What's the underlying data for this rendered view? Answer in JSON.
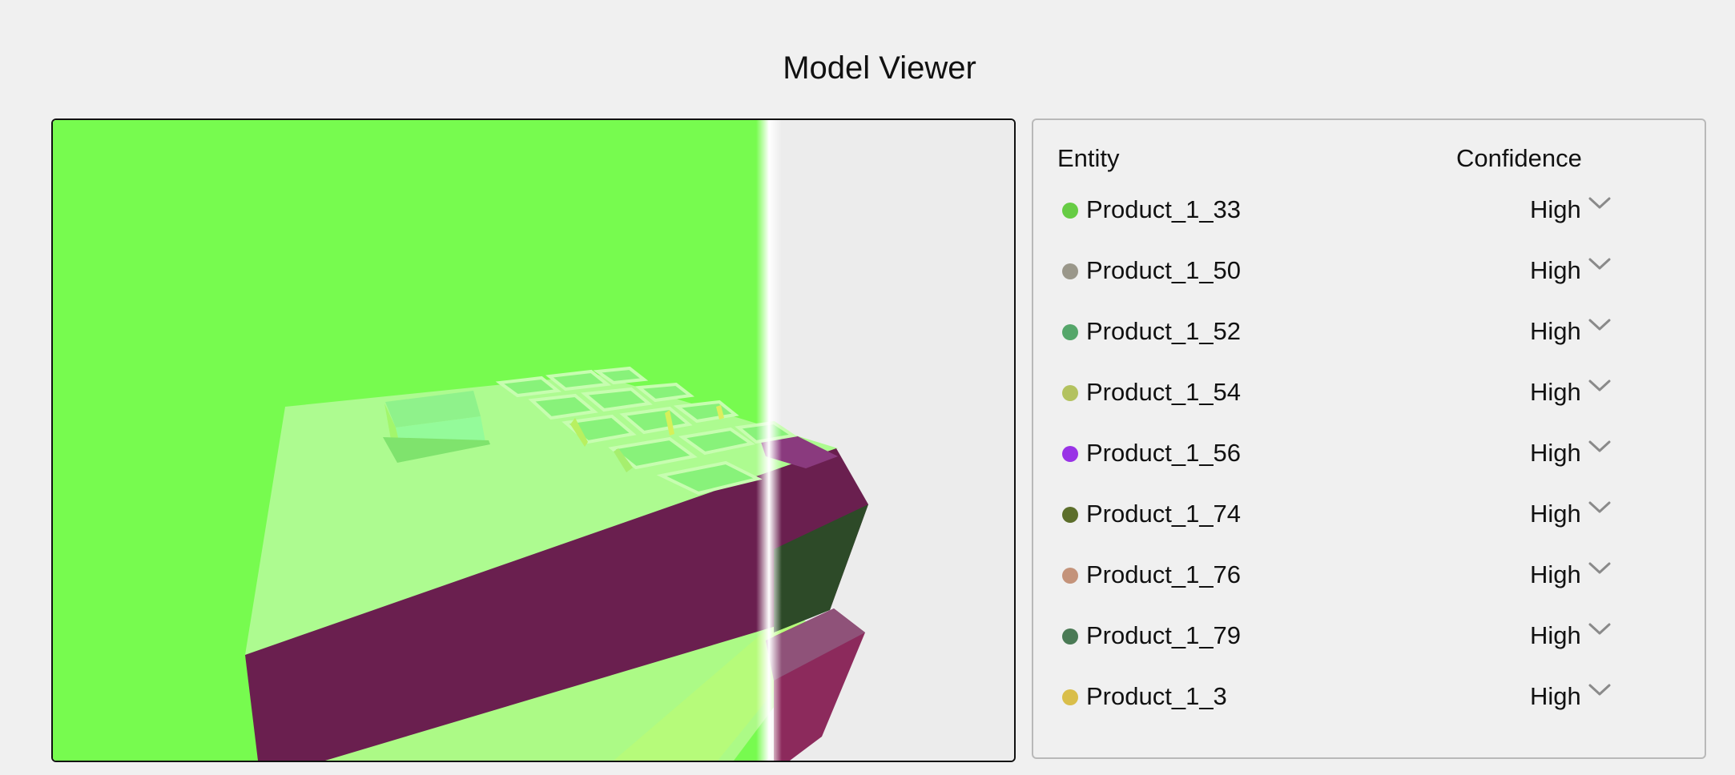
{
  "page": {
    "title": "Model Viewer"
  },
  "table": {
    "headers": {
      "entity": "Entity",
      "confidence": "Confidence"
    },
    "rows": [
      {
        "name": "Product_1_33",
        "color": "#66cc44",
        "confidence": "High"
      },
      {
        "name": "Product_1_50",
        "color": "#9a978a",
        "confidence": "High"
      },
      {
        "name": "Product_1_52",
        "color": "#55a66a",
        "confidence": "High"
      },
      {
        "name": "Product_1_54",
        "color": "#b3c25f",
        "confidence": "High"
      },
      {
        "name": "Product_1_56",
        "color": "#9933e6",
        "confidence": "High"
      },
      {
        "name": "Product_1_74",
        "color": "#5c6e2b",
        "confidence": "High"
      },
      {
        "name": "Product_1_76",
        "color": "#c4937a",
        "confidence": "High"
      },
      {
        "name": "Product_1_79",
        "color": "#4a7a55",
        "confidence": "High"
      },
      {
        "name": "Product_1_3",
        "color": "#d9be4a",
        "confidence": "High"
      }
    ]
  },
  "icons": {
    "dropdown": "chevron-down-icon"
  }
}
